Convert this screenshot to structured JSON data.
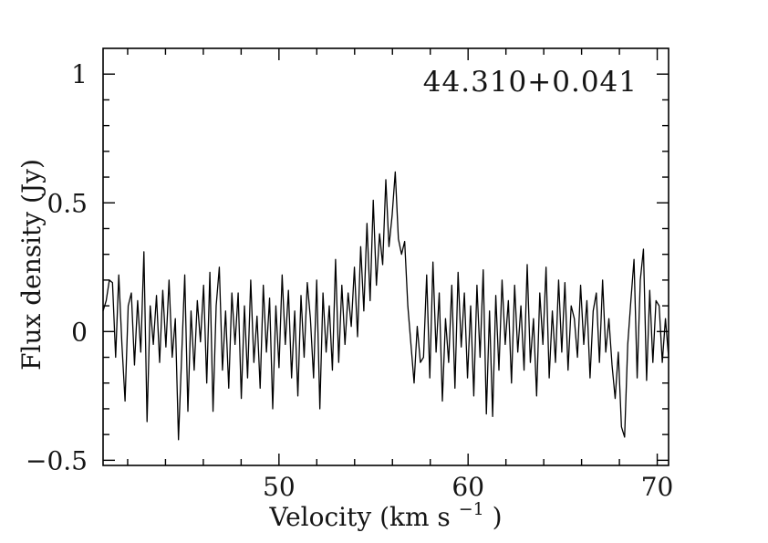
{
  "figure": {
    "background": "#ffffff",
    "text_color": "#151515",
    "line_color": "#000000"
  },
  "chart_data": {
    "type": "line",
    "title": "44.310+0.041",
    "xlabel": "Velocity (km s⁻¹)",
    "xlabel_parts": {
      "main": "Velocity (km s",
      "sup": "−1",
      "end": ")"
    },
    "ylabel": "Flux density (Jy)",
    "xlim": [
      40.7,
      70.6
    ],
    "ylim": [
      -0.52,
      1.1
    ],
    "grid": false,
    "legend": "none",
    "x_major_ticks": [
      {
        "v": 50,
        "label": "50"
      },
      {
        "v": 60,
        "label": "60"
      },
      {
        "v": 70,
        "label": "70"
      }
    ],
    "x_minor_step": 2,
    "y_major_ticks": [
      {
        "v": -0.5,
        "label": "−0.5"
      },
      {
        "v": 0,
        "label": "0"
      },
      {
        "v": 0.5,
        "label": "0.5"
      },
      {
        "v": 1,
        "label": "1"
      }
    ],
    "y_minor_step": 0.1,
    "series": [
      {
        "name": "spectrum",
        "x_start": 40.7,
        "x_end": 70.6,
        "peak_flux_jy": 0.62,
        "peak_velocity_kms": 56.1,
        "values": [
          0.08,
          0.12,
          0.2,
          0.19,
          -0.1,
          0.22,
          -0.05,
          -0.27,
          0.1,
          0.15,
          -0.13,
          0.12,
          -0.08,
          0.31,
          -0.35,
          0.1,
          -0.05,
          0.14,
          -0.12,
          0.16,
          -0.06,
          0.2,
          -0.1,
          0.05,
          -0.42,
          -0.1,
          0.22,
          -0.31,
          0.08,
          -0.15,
          0.12,
          -0.04,
          0.18,
          -0.2,
          0.23,
          -0.31,
          0.1,
          0.25,
          -0.15,
          0.08,
          -0.22,
          0.15,
          -0.05,
          0.15,
          -0.26,
          0.1,
          -0.18,
          0.2,
          -0.12,
          0.06,
          -0.22,
          0.18,
          -0.08,
          0.13,
          -0.3,
          0.1,
          -0.14,
          0.22,
          -0.05,
          0.16,
          -0.18,
          0.08,
          -0.25,
          0.14,
          -0.1,
          0.19,
          0.05,
          -0.18,
          0.2,
          -0.3,
          0.15,
          -0.08,
          0.1,
          -0.15,
          0.28,
          -0.12,
          0.18,
          -0.05,
          0.15,
          0.02,
          0.25,
          -0.02,
          0.33,
          0.08,
          0.42,
          0.12,
          0.51,
          0.18,
          0.38,
          0.26,
          0.59,
          0.33,
          0.45,
          0.62,
          0.36,
          0.3,
          0.35,
          0.1,
          -0.05,
          -0.2,
          0.02,
          -0.12,
          -0.1,
          0.22,
          -0.18,
          0.27,
          -0.08,
          0.15,
          -0.27,
          0.05,
          -0.12,
          0.18,
          -0.22,
          0.23,
          -0.06,
          0.15,
          -0.18,
          0.1,
          -0.25,
          0.18,
          -0.1,
          0.24,
          -0.32,
          0.08,
          -0.33,
          0.14,
          -0.15,
          0.2,
          -0.05,
          0.12,
          -0.2,
          0.18,
          -0.08,
          0.1,
          -0.15,
          0.26,
          -0.12,
          0.05,
          -0.25,
          0.15,
          -0.05,
          0.25,
          -0.18,
          0.08,
          -0.12,
          0.2,
          -0.08,
          0.19,
          -0.15,
          0.1,
          0.05,
          -0.1,
          0.18,
          -0.05,
          0.12,
          -0.18,
          0.08,
          0.15,
          -0.12,
          0.2,
          -0.08,
          0.05,
          -0.13,
          -0.26,
          -0.08,
          -0.37,
          -0.41,
          -0.05,
          0.12,
          0.28,
          -0.18,
          0.2,
          0.32,
          -0.19,
          0.16,
          -0.12,
          0.12,
          0.1,
          -0.12,
          0.05,
          -0.1
        ]
      }
    ]
  }
}
